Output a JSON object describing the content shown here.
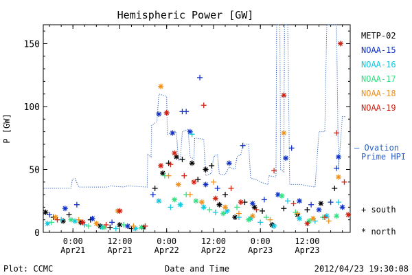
{
  "chart_data": {
    "type": "scatter",
    "title": "Hemispheric Power [GW]",
    "ylabel": "P [GW]",
    "xlabel": "Date and Time",
    "ylim": [
      0,
      165
    ],
    "xlim": [
      "2012-04-20 16:24",
      "2012-04-23 23:00"
    ],
    "yticks": [
      0,
      50,
      100,
      150
    ],
    "xticks": [
      {
        "t": "2012-04-21 00:00",
        "line1": "0:00",
        "line2": "Apr21"
      },
      {
        "t": "2012-04-21 12:00",
        "line1": "12:00",
        "line2": "Apr21"
      },
      {
        "t": "2012-04-22 00:00",
        "line1": "0:00",
        "line2": "Apr22"
      },
      {
        "t": "2012-04-22 12:00",
        "line1": "12:00",
        "line2": "Apr22"
      },
      {
        "t": "2012-04-23 00:00",
        "line1": "0:00",
        "line2": "Apr23"
      },
      {
        "t": "2012-04-23 12:00",
        "line1": "12:00",
        "line2": "Apr23"
      }
    ],
    "grid": false,
    "legend_position": "right",
    "marker_legend": [
      {
        "symbol": "+",
        "label": "south"
      },
      {
        "symbol": "*",
        "label": "north"
      }
    ],
    "ovation": {
      "label_line1": "— Ovation",
      "label_line2": "Prime HPI",
      "color": "#2a5fc0",
      "points": [
        [
          "2012-04-20 16:30",
          35
        ],
        [
          "2012-04-20 23:30",
          35
        ],
        [
          "2012-04-20 23:50",
          42
        ],
        [
          "2012-04-21 00:30",
          43
        ],
        [
          "2012-04-21 01:30",
          36
        ],
        [
          "2012-04-21 09:00",
          36
        ],
        [
          "2012-04-21 09:30",
          37
        ],
        [
          "2012-04-21 13:00",
          36
        ],
        [
          "2012-04-21 14:00",
          37
        ],
        [
          "2012-04-21 19:00",
          36
        ],
        [
          "2012-04-21 19:10",
          62
        ],
        [
          "2012-04-21 20:00",
          60
        ],
        [
          "2012-04-21 20:10",
          85
        ],
        [
          "2012-04-21 21:30",
          88
        ],
        [
          "2012-04-21 22:00",
          110
        ],
        [
          "2012-04-22 00:00",
          108
        ],
        [
          "2012-04-22 00:10",
          78
        ],
        [
          "2012-04-22 02:30",
          80
        ],
        [
          "2012-04-22 03:00",
          57
        ],
        [
          "2012-04-22 03:30",
          58
        ],
        [
          "2012-04-22 04:00",
          80
        ],
        [
          "2012-04-22 05:30",
          82
        ],
        [
          "2012-04-22 06:00",
          60
        ],
        [
          "2012-04-22 07:00",
          58
        ],
        [
          "2012-04-22 07:10",
          75
        ],
        [
          "2012-04-22 09:30",
          74
        ],
        [
          "2012-04-22 10:00",
          45
        ],
        [
          "2012-04-22 11:30",
          47
        ],
        [
          "2012-04-22 12:00",
          60
        ],
        [
          "2012-04-22 13:00",
          62
        ],
        [
          "2012-04-22 13:30",
          46
        ],
        [
          "2012-04-22 15:00",
          46
        ],
        [
          "2012-04-22 16:00",
          52
        ],
        [
          "2012-04-22 17:30",
          50
        ],
        [
          "2012-04-22 18:00",
          60
        ],
        [
          "2012-04-22 19:00",
          62
        ],
        [
          "2012-04-22 19:30",
          70
        ],
        [
          "2012-04-22 21:00",
          70
        ],
        [
          "2012-04-22 21:30",
          43
        ],
        [
          "2012-04-22 23:00",
          42
        ],
        [
          "2012-04-23 00:00",
          40
        ],
        [
          "2012-04-23 02:00",
          38
        ],
        [
          "2012-04-23 02:10",
          45
        ],
        [
          "2012-04-23 04:00",
          44
        ],
        [
          "2012-04-23 04:10",
          165
        ],
        [
          "2012-04-23 05:00",
          165
        ],
        [
          "2012-04-23 05:10",
          50
        ],
        [
          "2012-04-23 06:00",
          48
        ],
        [
          "2012-04-23 06:10",
          165
        ],
        [
          "2012-04-23 07:00",
          165
        ],
        [
          "2012-04-23 07:30",
          38
        ],
        [
          "2012-04-23 09:00",
          38
        ],
        [
          "2012-04-23 10:30",
          38
        ],
        [
          "2012-04-23 12:00",
          37
        ],
        [
          "2012-04-23 14:00",
          36
        ],
        [
          "2012-04-23 15:00",
          80
        ],
        [
          "2012-04-23 16:30",
          80
        ],
        [
          "2012-04-23 17:00",
          165
        ],
        [
          "2012-04-23 19:30",
          165
        ],
        [
          "2012-04-23 20:00",
          50
        ],
        [
          "2012-04-23 21:00",
          92
        ],
        [
          "2012-04-23 22:00",
          92
        ]
      ]
    },
    "series": [
      {
        "name": "METP-02",
        "color": "#000000",
        "points": [
          [
            "2012-04-20 17:00",
            16,
            "n"
          ],
          [
            "2012-04-20 19:00",
            12,
            "s"
          ],
          [
            "2012-04-20 21:30",
            9,
            "n"
          ],
          [
            "2012-04-20 23:00",
            14,
            "s"
          ],
          [
            "2012-04-21 02:00",
            8,
            "n"
          ],
          [
            "2012-04-21 04:30",
            10,
            "s"
          ],
          [
            "2012-04-21 07:00",
            5,
            "n"
          ],
          [
            "2012-04-21 09:30",
            4,
            "s"
          ],
          [
            "2012-04-21 12:00",
            6,
            "n"
          ],
          [
            "2012-04-21 15:00",
            3,
            "s"
          ],
          [
            "2012-04-21 18:00",
            4,
            "n"
          ],
          [
            "2012-04-21 21:00",
            35,
            "s"
          ],
          [
            "2012-04-21 23:00",
            47,
            "n"
          ],
          [
            "2012-04-22 00:30",
            55,
            "s"
          ],
          [
            "2012-04-22 02:30",
            60,
            "n"
          ],
          [
            "2012-04-22 04:00",
            58,
            "s"
          ],
          [
            "2012-04-22 06:30",
            55,
            "n"
          ],
          [
            "2012-04-22 08:00",
            42,
            "s"
          ],
          [
            "2012-04-22 10:00",
            50,
            "n"
          ],
          [
            "2012-04-22 11:30",
            53,
            "s"
          ],
          [
            "2012-04-22 13:30",
            22,
            "n"
          ],
          [
            "2012-04-22 15:00",
            30,
            "s"
          ],
          [
            "2012-04-22 17:30",
            12,
            "n"
          ],
          [
            "2012-04-22 20:00",
            24,
            "s"
          ],
          [
            "2012-04-22 22:30",
            20,
            "n"
          ],
          [
            "2012-04-23 00:30",
            17,
            "s"
          ],
          [
            "2012-04-23 03:00",
            6,
            "n"
          ],
          [
            "2012-04-23 06:00",
            19,
            "s"
          ],
          [
            "2012-04-23 09:30",
            14,
            "n"
          ],
          [
            "2012-04-23 12:00",
            18,
            "s"
          ],
          [
            "2012-04-23 15:30",
            23,
            "n"
          ],
          [
            "2012-04-23 19:00",
            35,
            "s"
          ]
        ]
      },
      {
        "name": "NOAA-15",
        "color": "#1030c8",
        "points": [
          [
            "2012-04-20 18:00",
            14,
            "s"
          ],
          [
            "2012-04-20 22:00",
            19,
            "n"
          ],
          [
            "2012-04-21 01:00",
            22,
            "s"
          ],
          [
            "2012-04-21 05:00",
            11,
            "n"
          ],
          [
            "2012-04-21 10:00",
            8,
            "s"
          ],
          [
            "2012-04-21 14:00",
            5,
            "n"
          ],
          [
            "2012-04-21 20:30",
            30,
            "s"
          ],
          [
            "2012-04-21 22:00",
            94,
            "n"
          ],
          [
            "2012-04-22 00:00",
            95,
            "s"
          ],
          [
            "2012-04-22 01:30",
            79,
            "n"
          ],
          [
            "2012-04-22 04:00",
            96,
            "s"
          ],
          [
            "2012-04-22 05:00",
            96,
            "s"
          ],
          [
            "2012-04-22 06:00",
            80,
            "n"
          ],
          [
            "2012-04-22 08:30",
            123,
            "s"
          ],
          [
            "2012-04-22 10:00",
            38,
            "n"
          ],
          [
            "2012-04-22 13:00",
            35,
            "s"
          ],
          [
            "2012-04-22 16:00",
            55,
            "n"
          ],
          [
            "2012-04-22 19:30",
            69,
            "s"
          ],
          [
            "2012-04-22 22:00",
            23,
            "n"
          ],
          [
            "2012-04-23 01:00",
            26,
            "s"
          ],
          [
            "2012-04-23 04:30",
            30,
            "n"
          ],
          [
            "2012-04-23 06:30",
            59,
            "n"
          ],
          [
            "2012-04-23 08:00",
            67,
            "s"
          ],
          [
            "2012-04-23 10:00",
            25,
            "n"
          ],
          [
            "2012-04-23 13:00",
            22,
            "s"
          ],
          [
            "2012-04-23 15:00",
            18,
            "n"
          ],
          [
            "2012-04-23 18:00",
            24,
            "s"
          ],
          [
            "2012-04-23 20:00",
            60,
            "n"
          ],
          [
            "2012-04-23 19:30",
            51,
            "s"
          ],
          [
            "2012-04-23 21:00",
            20,
            "n"
          ]
        ]
      },
      {
        "name": "NOAA-16",
        "color": "#10c8e0",
        "points": [
          [
            "2012-04-20 17:30",
            7,
            "n"
          ],
          [
            "2012-04-20 21:00",
            10,
            "s"
          ],
          [
            "2012-04-21 00:30",
            9,
            "n"
          ],
          [
            "2012-04-21 03:00",
            6,
            "s"
          ],
          [
            "2012-04-21 07:30",
            4,
            "n"
          ],
          [
            "2012-04-21 11:00",
            3,
            "s"
          ],
          [
            "2012-04-21 16:00",
            3,
            "n"
          ],
          [
            "2012-04-21 22:00",
            25,
            "n"
          ],
          [
            "2012-04-22 01:00",
            20,
            "s"
          ],
          [
            "2012-04-22 03:30",
            22,
            "n"
          ],
          [
            "2012-04-22 06:30",
            78,
            "s"
          ],
          [
            "2012-04-22 09:30",
            20,
            "n"
          ],
          [
            "2012-04-22 12:30",
            16,
            "s"
          ],
          [
            "2012-04-22 15:30",
            17,
            "n"
          ],
          [
            "2012-04-22 18:30",
            12,
            "s"
          ],
          [
            "2012-04-22 21:30",
            11,
            "n"
          ],
          [
            "2012-04-23 00:00",
            8,
            "s"
          ],
          [
            "2012-04-23 03:30",
            5,
            "n"
          ],
          [
            "2012-04-23 07:00",
            25,
            "s"
          ],
          [
            "2012-04-23 10:00",
            11,
            "n"
          ],
          [
            "2012-04-23 14:00",
            9,
            "s"
          ],
          [
            "2012-04-23 17:00",
            13,
            "n"
          ],
          [
            "2012-04-23 20:00",
            24,
            "s"
          ]
        ]
      },
      {
        "name": "NOAA-17",
        "color": "#30e080",
        "points": [
          [
            "2012-04-20 18:30",
            8,
            "s"
          ],
          [
            "2012-04-20 23:30",
            10,
            "n"
          ],
          [
            "2012-04-21 04:00",
            5,
            "s"
          ],
          [
            "2012-04-21 08:00",
            4,
            "n"
          ],
          [
            "2012-04-21 13:00",
            6,
            "s"
          ],
          [
            "2012-04-21 17:30",
            4,
            "n"
          ],
          [
            "2012-04-21 23:30",
            45,
            "s"
          ],
          [
            "2012-04-22 02:00",
            26,
            "n"
          ],
          [
            "2012-04-22 05:00",
            30,
            "s"
          ],
          [
            "2012-04-22 07:30",
            25,
            "n"
          ],
          [
            "2012-04-22 11:00",
            18,
            "s"
          ],
          [
            "2012-04-22 14:30",
            15,
            "n"
          ],
          [
            "2012-04-22 18:00",
            20,
            "s"
          ],
          [
            "2012-04-22 21:00",
            10,
            "n"
          ],
          [
            "2012-04-23 01:30",
            12,
            "s"
          ],
          [
            "2012-04-23 05:30",
            29,
            "n"
          ],
          [
            "2012-04-23 09:00",
            16,
            "s"
          ],
          [
            "2012-04-23 12:30",
            9,
            "n"
          ],
          [
            "2012-04-23 16:00",
            12,
            "s"
          ],
          [
            "2012-04-23 19:30",
            13,
            "n"
          ]
        ]
      },
      {
        "name": "NOAA-18",
        "color": "#f09018",
        "points": [
          [
            "2012-04-20 19:30",
            12,
            "n"
          ],
          [
            "2012-04-21 01:30",
            10,
            "s"
          ],
          [
            "2012-04-21 06:00",
            7,
            "n"
          ],
          [
            "2012-04-21 11:30",
            17,
            "n"
          ],
          [
            "2012-04-21 15:30",
            5,
            "s"
          ],
          [
            "2012-04-21 22:30",
            116,
            "n"
          ],
          [
            "2012-04-22 00:30",
            45,
            "s"
          ],
          [
            "2012-04-22 03:00",
            38,
            "n"
          ],
          [
            "2012-04-22 06:00",
            30,
            "s"
          ],
          [
            "2012-04-22 09:00",
            24,
            "n"
          ],
          [
            "2012-04-22 12:00",
            40,
            "s"
          ],
          [
            "2012-04-22 15:00",
            20,
            "n"
          ],
          [
            "2012-04-22 18:30",
            15,
            "s"
          ],
          [
            "2012-04-22 22:00",
            13,
            "n"
          ],
          [
            "2012-04-23 02:30",
            10,
            "s"
          ],
          [
            "2012-04-23 06:00",
            79,
            "n"
          ],
          [
            "2012-04-23 09:30",
            15,
            "s"
          ],
          [
            "2012-04-23 13:30",
            11,
            "n"
          ],
          [
            "2012-04-23 17:30",
            9,
            "s"
          ],
          [
            "2012-04-23 20:00",
            44,
            "n"
          ]
        ]
      },
      {
        "name": "NOAA-19",
        "color": "#d02010",
        "points": [
          [
            "2012-04-20 20:00",
            10,
            "s"
          ],
          [
            "2012-04-21 02:30",
            8,
            "n"
          ],
          [
            "2012-04-21 08:30",
            6,
            "s"
          ],
          [
            "2012-04-21 12:00",
            17,
            "n"
          ],
          [
            "2012-04-21 18:30",
            5,
            "s"
          ],
          [
            "2012-04-21 22:30",
            53,
            "n"
          ],
          [
            "2012-04-22 01:00",
            54,
            "s"
          ],
          [
            "2012-04-22 00:00",
            95,
            "n"
          ],
          [
            "2012-04-22 02:00",
            63,
            "n"
          ],
          [
            "2012-04-22 04:30",
            45,
            "s"
          ],
          [
            "2012-04-22 07:00",
            40,
            "n"
          ],
          [
            "2012-04-22 09:30",
            101,
            "s"
          ],
          [
            "2012-04-22 12:30",
            27,
            "n"
          ],
          [
            "2012-04-22 16:30",
            35,
            "s"
          ],
          [
            "2012-04-22 19:00",
            24,
            "n"
          ],
          [
            "2012-04-22 23:00",
            18,
            "s"
          ],
          [
            "2012-04-23 03:30",
            49,
            "s"
          ],
          [
            "2012-04-23 06:00",
            109,
            "n"
          ],
          [
            "2012-04-23 08:30",
            23,
            "s"
          ],
          [
            "2012-04-23 12:00",
            7,
            "n"
          ],
          [
            "2012-04-23 16:30",
            12,
            "s"
          ],
          [
            "2012-04-23 19:30",
            79,
            "s"
          ],
          [
            "2012-04-23 20:30",
            150,
            "n"
          ],
          [
            "2012-04-23 21:30",
            40,
            "s"
          ],
          [
            "2012-04-23 22:30",
            14,
            "n"
          ]
        ]
      }
    ]
  },
  "footer": {
    "plot_source": "Plot: CCMC",
    "timestamp": "2012/04/23 19:30:08"
  }
}
